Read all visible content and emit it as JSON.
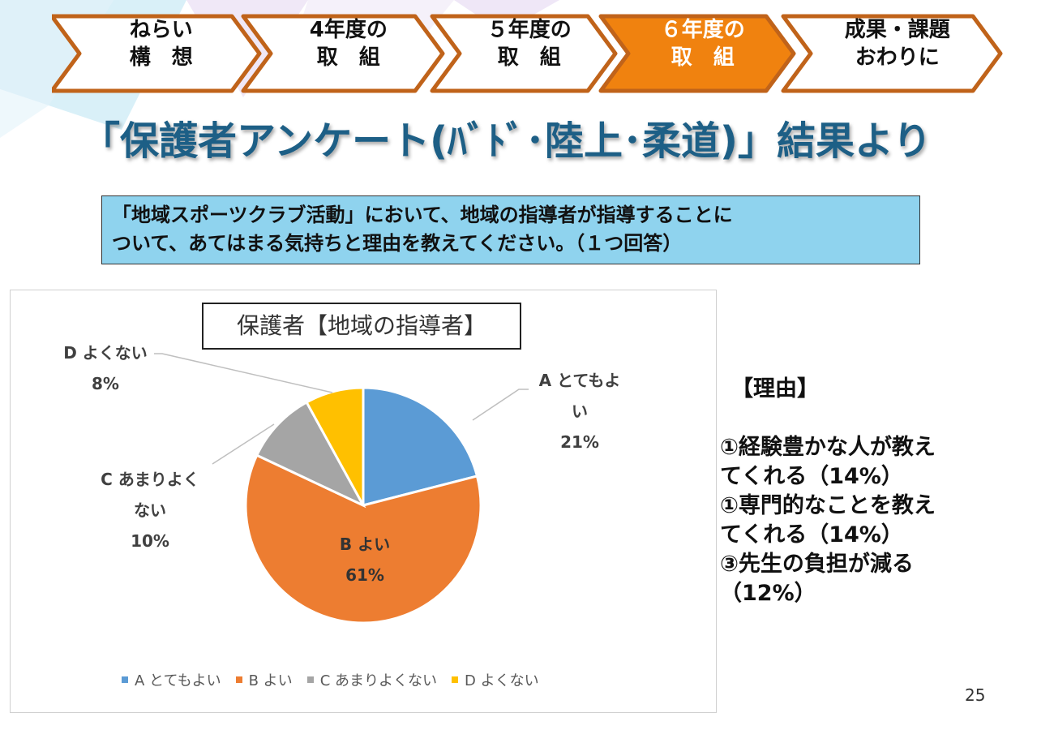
{
  "nav": {
    "steps": [
      {
        "line1": "ねらい",
        "line2": "構　想",
        "active": false
      },
      {
        "line1": "4年度の",
        "line2": "取　組",
        "active": false
      },
      {
        "line1": "５年度の",
        "line2": "取　組",
        "active": false
      },
      {
        "line1": "６年度の",
        "line2": "取　組",
        "active": true
      },
      {
        "line1": "成果・課題",
        "line2": "おわりに",
        "active": false
      }
    ],
    "colors": {
      "border": "#c0631a",
      "active_fill": "#f0820f",
      "fill": "#ffffff"
    }
  },
  "slide_title": "「保護者アンケート(ﾊﾞﾄﾞ･陸上･柔道)」結果より",
  "question": {
    "line1": "「地域スポーツクラブ活動」において、地域の指導者が指導することに",
    "line2": "ついて、あてはまる気持ちと理由を教えてください。（１つ回答）"
  },
  "chart_data": {
    "type": "pie",
    "title": "保護者【地域の指導者】",
    "slices": [
      {
        "category": "A",
        "name": "Aとてもよい",
        "value": 21,
        "label_lines": [
          "A とてもよ",
          "い"
        ],
        "pct_label": "21%",
        "color": "#5b9bd5"
      },
      {
        "category": "B",
        "name": "Bよい",
        "value": 61,
        "label_lines": [
          "B よい"
        ],
        "pct_label": "61%",
        "color": "#ed7d31"
      },
      {
        "category": "C",
        "name": "Cあまりよくない",
        "value": 10,
        "label_lines": [
          "C あまりよく",
          "ない"
        ],
        "pct_label": "10%",
        "color": "#a5a5a5"
      },
      {
        "category": "D",
        "name": "Dよくない",
        "value": 8,
        "label_lines": [
          "D よくない"
        ],
        "pct_label": "8%",
        "color": "#ffc000"
      }
    ],
    "legend": [
      {
        "label": "A とてもよい",
        "color": "#5b9bd5"
      },
      {
        "label": "B よい",
        "color": "#ed7d31"
      },
      {
        "label": "C あまりよくない",
        "color": "#a5a5a5"
      },
      {
        "label": "D よくない",
        "color": "#ffc000"
      }
    ],
    "legend_position": "bottom"
  },
  "reasons": {
    "heading": "【理由】",
    "items": [
      {
        "line1": "①経験豊かな人が教え",
        "line2": "てくれる（14%）"
      },
      {
        "line1": "①専門的なことを教え",
        "line2": "てくれる（14%）"
      },
      {
        "line1": "③先生の負担が減る",
        "line2": "（12%）"
      }
    ]
  },
  "page_number": "25"
}
